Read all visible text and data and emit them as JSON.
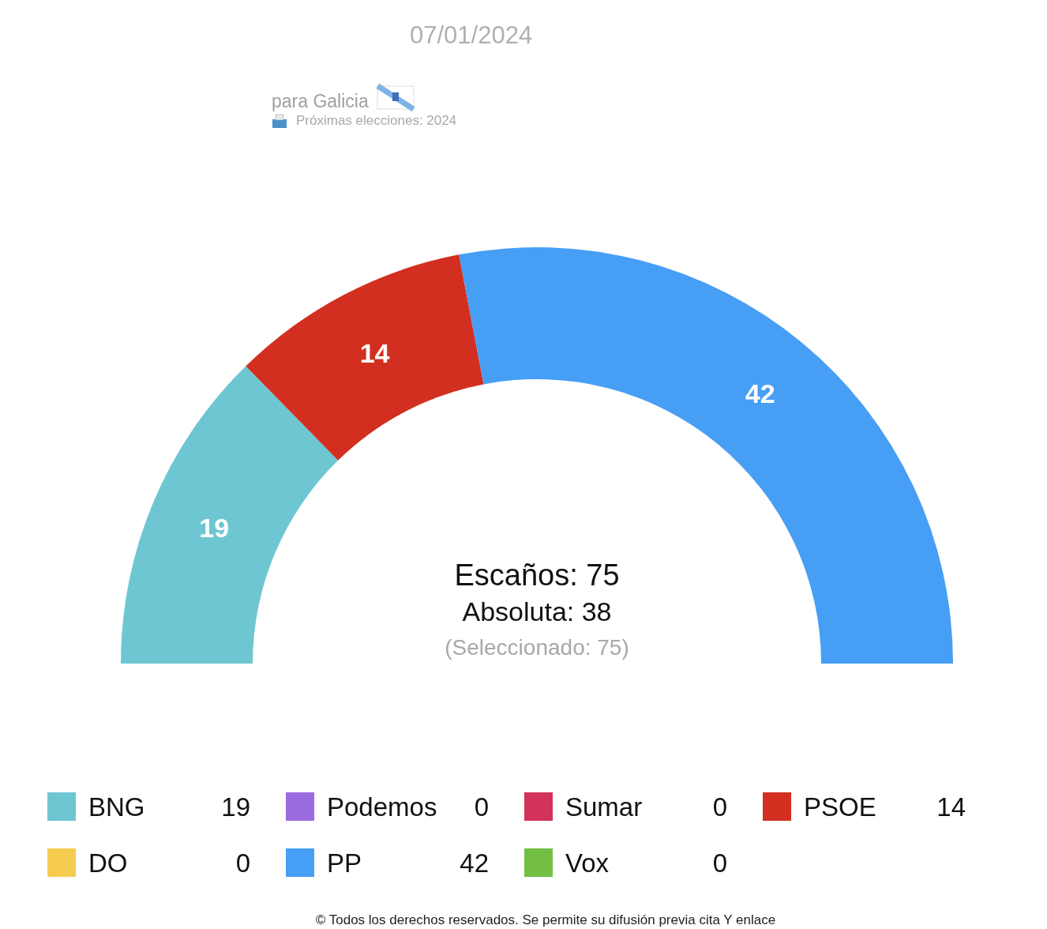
{
  "chart_data": {
    "type": "donut",
    "title": "07/01/2024",
    "subtitle": "para Galicia",
    "categories": [
      "BNG",
      "Podemos",
      "Sumar",
      "PSOE",
      "DO",
      "PP",
      "Vox"
    ],
    "values": [
      19,
      0,
      0,
      14,
      0,
      42,
      0
    ],
    "colors": [
      "#6ec6d2",
      "#9b6be0",
      "#d3325a",
      "#d22f20",
      "#f6cc4f",
      "#479ef5",
      "#72bf44"
    ],
    "value_labels": [
      "19",
      "0",
      "0",
      "14",
      "0",
      "42",
      "0"
    ],
    "legend": "bottom",
    "annotations": [
      "Próximas elecciones: 2024",
      "Escaños: 75",
      "Absoluta: 38",
      "(Seleccionado: 75)",
      "© Todos los derechos reservados. Se permite su difusión previa cita Y enlace"
    ]
  }
}
